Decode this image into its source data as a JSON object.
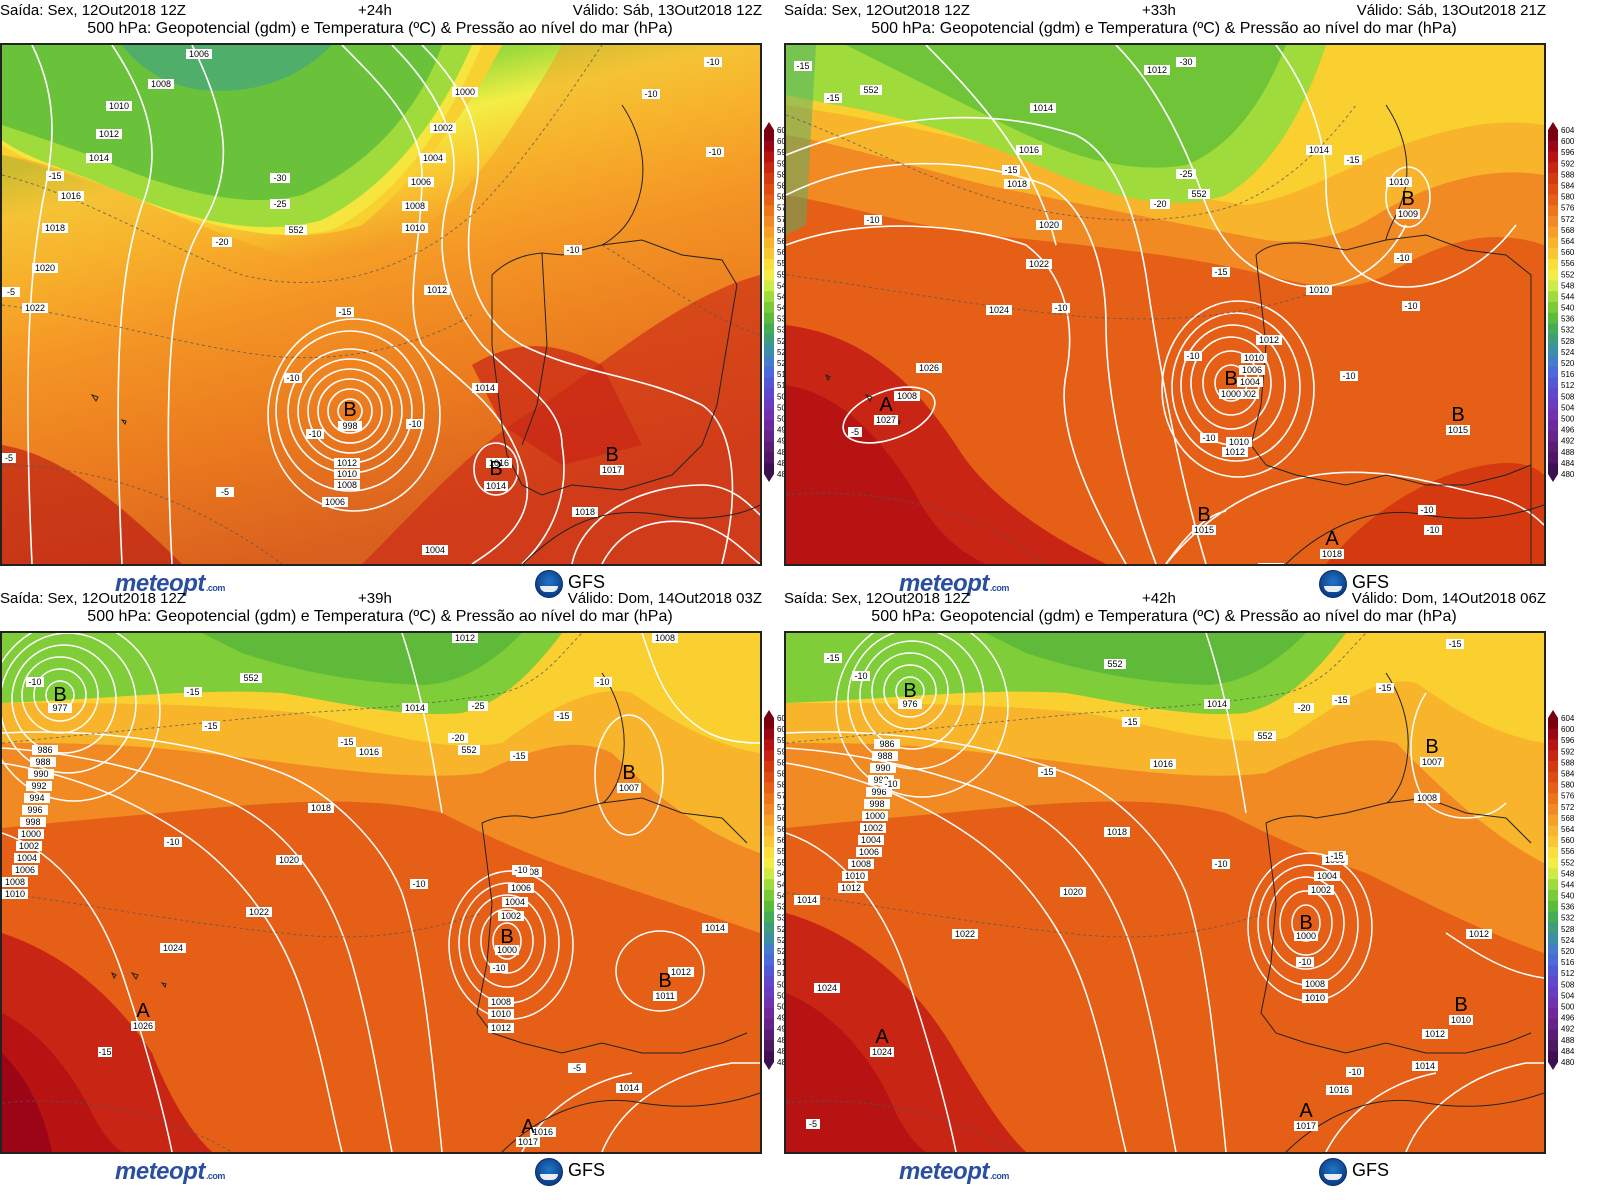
{
  "panels": [
    {
      "id": "p1",
      "header": {
        "run": "Saída: Sex, 12Out2018 12Z",
        "lead": "+24h",
        "valid": "Válido: Sáb, 13Out2018 12Z",
        "title": "500 hPa: Geopotencial (gdm) e Temperatura (ºC) & Pressão ao nível do mar (hPa)"
      },
      "centers": [
        {
          "type": "B",
          "value": "998"
        },
        {
          "type": "B",
          "value": "1014"
        },
        {
          "type": "B",
          "value": "1017"
        }
      ],
      "isobar_labels": [
        "1006",
        "1008",
        "1010",
        "1012",
        "1014",
        "1016",
        "1018",
        "1020",
        "1022",
        "1000",
        "1002",
        "1004",
        "1006",
        "1008",
        "1010",
        "1012",
        "1014",
        "1016",
        "1018",
        "1012",
        "1010",
        "1008",
        "1006",
        "1004",
        "1002",
        "1000",
        "998"
      ],
      "temp_labels": [
        "-15",
        "-30",
        "-25",
        "-20",
        "-10",
        "-10",
        "-10",
        "-10",
        "-10",
        "-10",
        "-10",
        "-5",
        "-5",
        "-15",
        "-5"
      ],
      "height_labels": [
        "552"
      ],
      "footer": {
        "logo_main": "meteopt",
        "logo_suffix": ".com",
        "model": "GFS"
      }
    },
    {
      "id": "p2",
      "header": {
        "run": "Saída: Sex, 12Out2018 12Z",
        "lead": "+33h",
        "valid": "Válido: Sáb, 13Out2018 21Z",
        "title": "500 hPa: Geopotencial (gdm) e Temperatura (ºC) & Pressão ao nível do mar (hPa)"
      },
      "centers": [
        {
          "type": "A",
          "value": "1027"
        },
        {
          "type": "B",
          "value": "1000"
        },
        {
          "type": "B",
          "value": "1009"
        },
        {
          "type": "B",
          "value": "1015"
        },
        {
          "type": "B",
          "value": "1015"
        },
        {
          "type": "A",
          "value": "1018"
        }
      ],
      "isobar_labels": [
        "1012",
        "1014",
        "1016",
        "1018",
        "1020",
        "1022",
        "1024",
        "1026",
        "1008",
        "1010",
        "1012",
        "1014",
        "1016",
        "1010",
        "1010",
        "1006",
        "1004",
        "1002",
        "1010",
        "1012"
      ],
      "temp_labels": [
        "-15",
        "-15",
        "-30",
        "-25",
        "-20",
        "-15",
        "-15",
        "-10",
        "-10",
        "-10",
        "-10",
        "-10",
        "-10",
        "-10",
        "-10",
        "-5",
        "-10",
        "-15"
      ],
      "height_labels": [
        "552",
        "552"
      ],
      "footer": {
        "logo_main": "meteopt",
        "logo_suffix": ".com",
        "model": "GFS"
      }
    },
    {
      "id": "p3",
      "header": {
        "run": "Saída: Sex, 12Out2018 12Z",
        "lead": "+39h",
        "valid": "Válido: Dom, 14Out2018 03Z",
        "title": "500 hPa: Geopotencial (gdm) e Temperatura (ºC) & Pressão ao nível do mar (hPa)"
      },
      "centers": [
        {
          "type": "B",
          "value": "977"
        },
        {
          "type": "B",
          "value": "1007"
        },
        {
          "type": "B",
          "value": "1000"
        },
        {
          "type": "A",
          "value": "1026"
        },
        {
          "type": "B",
          "value": "1011"
        },
        {
          "type": "A",
          "value": "1017"
        }
      ],
      "isobar_labels": [
        "1012",
        "1008",
        "1014",
        "1016",
        "1018",
        "1020",
        "1022",
        "1024",
        "986",
        "988",
        "990",
        "992",
        "994",
        "996",
        "998",
        "1000",
        "1002",
        "1004",
        "1006",
        "1008",
        "1010",
        "1008",
        "1006",
        "1004",
        "1002",
        "1008",
        "1010",
        "1012",
        "1014",
        "1012",
        "1014",
        "1016"
      ],
      "temp_labels": [
        "-10",
        "-15",
        "-15",
        "-15",
        "-25",
        "-20",
        "-15",
        "-15",
        "-10",
        "-10",
        "-10",
        "-5",
        "-15",
        "-10",
        "-10"
      ],
      "height_labels": [
        "552",
        "552"
      ],
      "footer": {
        "logo_main": "meteopt",
        "logo_suffix": ".com",
        "model": "GFS"
      }
    },
    {
      "id": "p4",
      "header": {
        "run": "Saída: Sex, 12Out2018 12Z",
        "lead": "+42h",
        "valid": "Válido: Dom, 14Out2018 06Z",
        "title": "500 hPa: Geopotencial (gdm) e Temperatura (ºC) & Pressão ao nível do mar (hPa)"
      },
      "centers": [
        {
          "type": "B",
          "value": "976"
        },
        {
          "type": "B",
          "value": "1007"
        },
        {
          "type": "B",
          "value": "1000"
        },
        {
          "type": "A",
          "value": "1024"
        },
        {
          "type": "B",
          "value": "1010"
        },
        {
          "type": "A",
          "value": "1017"
        }
      ],
      "isobar_labels": [
        "1014",
        "1016",
        "1018",
        "1020",
        "1022",
        "1024",
        "986",
        "988",
        "990",
        "992",
        "996",
        "998",
        "1000",
        "1002",
        "1004",
        "1006",
        "1008",
        "1010",
        "1012",
        "1014",
        "1006",
        "1004",
        "1002",
        "1008",
        "1010",
        "1012",
        "1012",
        "1014",
        "1016",
        "1008"
      ],
      "temp_labels": [
        "-15",
        "-10",
        "-15",
        "-15",
        "-20",
        "-15",
        "-15",
        "-15",
        "-10",
        "-10",
        "-10",
        "-5",
        "-10",
        "-15"
      ],
      "height_labels": [
        "552",
        "552"
      ],
      "footer": {
        "logo_main": "meteopt",
        "logo_suffix": ".com",
        "model": "GFS"
      }
    }
  ],
  "colorbar": {
    "unit": "gdm",
    "levels": [
      604,
      600,
      596,
      592,
      588,
      584,
      580,
      576,
      572,
      568,
      564,
      560,
      556,
      552,
      548,
      544,
      540,
      536,
      532,
      528,
      524,
      520,
      516,
      512,
      508,
      504,
      500,
      496,
      492,
      488,
      484,
      480
    ],
    "colors": [
      "#7a0011",
      "#9c0515",
      "#b71313",
      "#c92515",
      "#d4390f",
      "#dd4c12",
      "#e56016",
      "#ec741b",
      "#f28a23",
      "#f59f27",
      "#f8b52c",
      "#f9c830",
      "#fade3a",
      "#f3ee45",
      "#cdea45",
      "#9fdb3b",
      "#79cc35",
      "#5cbc3a",
      "#44ad54",
      "#3c9e7a",
      "#3d8fa6",
      "#427fc8",
      "#4a6bd9",
      "#5458d6",
      "#6048cc",
      "#6a3cbf",
      "#7032ae",
      "#6e2a9c",
      "#672389",
      "#5b1c76",
      "#4e1663",
      "#3f1050"
    ]
  }
}
